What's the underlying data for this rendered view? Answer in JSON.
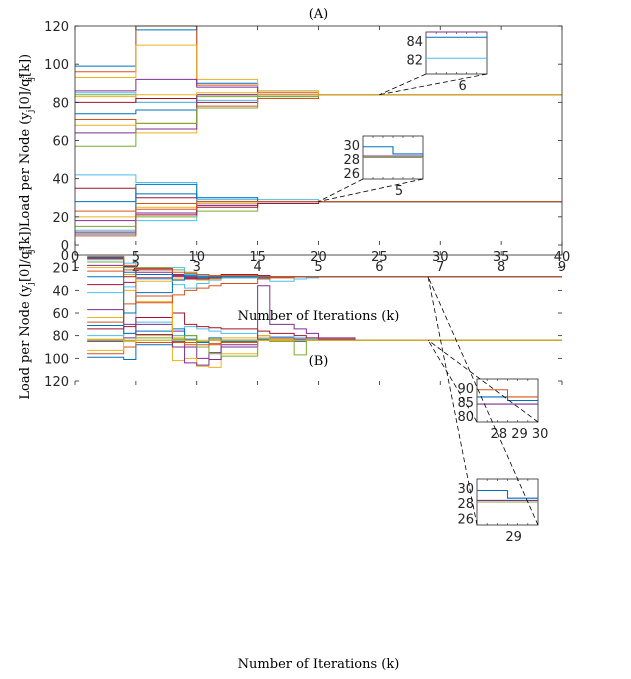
{
  "figure": {
    "colors": [
      "#0072BD",
      "#D95319",
      "#EDB120",
      "#7E2F8E",
      "#77AC30",
      "#4DBEEE",
      "#A2142F"
    ]
  },
  "chart_data": [
    {
      "type": "line",
      "title": "(A)",
      "xlabel": "Number of Iterations (k)",
      "ylabel": "Load per Node (y_j[0]/q_j^s[k])",
      "ylabel_parts": [
        "Load per Node ",
        "(y",
        "j",
        "[0]/q",
        "s",
        "j",
        "[k])"
      ],
      "xlim": [
        1,
        9
      ],
      "ylim": [
        0,
        120
      ],
      "xticks": [
        1,
        2,
        3,
        4,
        5,
        6,
        7,
        8,
        9
      ],
      "yticks": [
        0,
        20,
        40,
        60,
        80,
        100,
        120
      ],
      "grid": false,
      "step": true,
      "x": [
        1,
        2,
        3,
        4,
        5,
        6,
        7,
        8,
        9
      ],
      "series": [
        {
          "values": [
            99,
            118,
            90,
            86,
            84,
            84,
            84,
            84,
            84
          ]
        },
        {
          "values": [
            96,
            120,
            89,
            85,
            84,
            84,
            84,
            84,
            84
          ]
        },
        {
          "values": [
            93,
            110,
            92,
            86,
            84,
            84,
            84,
            84,
            84
          ]
        },
        {
          "values": [
            86,
            92,
            88,
            84,
            84,
            84,
            84,
            84,
            84
          ]
        },
        {
          "values": [
            84,
            80,
            83,
            84,
            84,
            84,
            84,
            84,
            84
          ]
        },
        {
          "values": [
            85,
            80,
            81,
            83,
            84,
            84,
            84,
            84,
            84
          ]
        },
        {
          "values": [
            80,
            82,
            80,
            82,
            84,
            84,
            84,
            84,
            84
          ]
        },
        {
          "values": [
            74,
            76,
            84,
            84,
            84,
            84,
            84,
            84,
            84
          ]
        },
        {
          "values": [
            71,
            69,
            78,
            82,
            84,
            84,
            84,
            84,
            84
          ]
        },
        {
          "values": [
            68,
            64,
            84,
            84,
            84,
            84,
            84,
            84,
            84
          ]
        },
        {
          "values": [
            64,
            66,
            84,
            84,
            84,
            84,
            84,
            84,
            84
          ]
        },
        {
          "values": [
            57,
            69,
            77,
            83,
            84,
            84,
            84,
            84,
            84
          ]
        },
        {
          "values": [
            42,
            38,
            30,
            29,
            28,
            28,
            28,
            28,
            28
          ]
        },
        {
          "values": [
            35,
            30,
            28,
            28,
            28,
            28,
            28,
            28,
            28
          ]
        },
        {
          "values": [
            28,
            32,
            28,
            28,
            28,
            28,
            28,
            28,
            28
          ]
        },
        {
          "values": [
            23,
            27,
            26,
            27,
            28,
            28,
            28,
            28,
            28
          ]
        },
        {
          "values": [
            20,
            25,
            27,
            28,
            28,
            28,
            28,
            28,
            28
          ]
        },
        {
          "values": [
            18,
            22,
            26,
            27,
            28,
            28,
            28,
            28,
            28
          ]
        },
        {
          "values": [
            15,
            20,
            23,
            27,
            28,
            28,
            28,
            28,
            28
          ]
        },
        {
          "values": [
            13,
            18,
            29,
            28,
            28,
            28,
            28,
            28,
            28
          ]
        },
        {
          "values": [
            12,
            21,
            25,
            27,
            28,
            28,
            28,
            28,
            28
          ]
        },
        {
          "values": [
            11,
            37,
            30,
            28,
            28,
            28,
            28,
            28,
            28
          ]
        },
        {
          "values": [
            10,
            24,
            28,
            28,
            28,
            28,
            28,
            28,
            28
          ]
        },
        {
          "values": [
            83,
            84,
            85,
            84,
            84,
            84,
            84,
            84,
            84
          ]
        }
      ],
      "insets": [
        {
          "target_x": 6,
          "target_y": 84,
          "label": "6",
          "yticks": [
            84,
            82
          ],
          "lines": [
            {
              "values": [
                85,
                85
              ],
              "color": 3
            },
            {
              "values": [
                84.5,
                84.5
              ],
              "color": 0
            },
            {
              "values": [
                82.5,
                82.5
              ],
              "color": 5
            }
          ]
        },
        {
          "target_x": 5,
          "target_y": 28,
          "label": "5",
          "yticks": [
            30,
            28,
            26
          ],
          "lines": [
            {
              "values": [
                29.5,
                28.5
              ],
              "color": 0
            },
            {
              "values": [
                28.2,
                28.2
              ],
              "color": 3
            },
            {
              "values": [
                28,
                28
              ],
              "color": 4
            }
          ]
        }
      ]
    },
    {
      "type": "line",
      "title": "(B)",
      "xlabel": "Number of Iterations (k)",
      "ylabel": "Load per Node (y_j[0]/q_j^s[k])",
      "ylabel_parts": [
        "Load per Node ",
        "(y",
        "j",
        "[0]/q",
        "s",
        "j",
        "[k])"
      ],
      "xlim": [
        0,
        40
      ],
      "ylim": [
        0,
        120
      ],
      "xticks": [
        0,
        5,
        10,
        15,
        20,
        25,
        30,
        35,
        40
      ],
      "yticks": [
        0,
        20,
        40,
        60,
        80,
        100,
        120
      ],
      "grid": false,
      "step": true,
      "x": [
        1,
        4,
        5,
        8,
        9,
        10,
        11,
        12,
        15,
        16,
        18,
        19,
        20,
        23,
        29,
        40
      ],
      "series": [
        {
          "values": [
            99,
            101,
            88,
            85,
            83,
            86,
            84,
            85,
            84,
            84,
            85,
            84,
            84,
            84,
            84,
            84
          ]
        },
        {
          "values": [
            96,
            90,
            86,
            84,
            86,
            88,
            87,
            84,
            84,
            85,
            84,
            84,
            84,
            84,
            84,
            84
          ]
        },
        {
          "values": [
            93,
            85,
            80,
            82,
            84,
            86,
            83,
            82,
            82,
            83,
            84,
            84,
            84,
            84,
            84,
            84
          ]
        },
        {
          "values": [
            85,
            82,
            70,
            76,
            90,
            100,
            95,
            88,
            80,
            82,
            83,
            84,
            84,
            84,
            84,
            84
          ]
        },
        {
          "values": [
            84,
            78,
            82,
            80,
            84,
            85,
            84,
            84,
            84,
            84,
            84,
            84,
            84,
            84,
            84,
            84
          ]
        },
        {
          "values": [
            80,
            60,
            68,
            80,
            72,
            74,
            76,
            78,
            80,
            81,
            82,
            83,
            84,
            84,
            84,
            84
          ]
        },
        {
          "values": [
            74,
            72,
            64,
            60,
            70,
            72,
            73,
            74,
            76,
            78,
            80,
            82,
            83,
            84,
            84,
            84
          ]
        },
        {
          "values": [
            71,
            78,
            76,
            74,
            80,
            86,
            82,
            84,
            83,
            84,
            84,
            84,
            84,
            84,
            84,
            84
          ]
        },
        {
          "values": [
            68,
            52,
            45,
            86,
            88,
            90,
            88,
            86,
            84,
            84,
            84,
            84,
            84,
            84,
            84,
            84
          ]
        },
        {
          "values": [
            64,
            40,
            50,
            102,
            100,
            107,
            108,
            96,
            80,
            84,
            84,
            84,
            84,
            84,
            84,
            84
          ]
        },
        {
          "values": [
            57,
            70,
            79,
            90,
            104,
            106,
            101,
            90,
            36,
            70,
            74,
            78,
            82,
            84,
            84,
            84
          ]
        },
        {
          "values": [
            84,
            84,
            84,
            83,
            80,
            90,
            96,
            98,
            84,
            85,
            97,
            84,
            84,
            84,
            84,
            84
          ]
        },
        {
          "values": [
            42,
            37,
            30,
            35,
            38,
            34,
            31,
            28,
            30,
            32,
            30,
            29,
            28,
            28,
            28,
            28
          ]
        },
        {
          "values": [
            35,
            33,
            29,
            27,
            30,
            28,
            30,
            29,
            30,
            28,
            28,
            28,
            28,
            28,
            28,
            28
          ]
        },
        {
          "values": [
            28,
            60,
            42,
            30,
            28,
            29,
            28,
            28,
            29,
            28,
            28,
            28,
            28,
            28,
            28,
            28
          ]
        },
        {
          "values": [
            23,
            22,
            51,
            44,
            40,
            38,
            36,
            34,
            30,
            29,
            28,
            28,
            28,
            28,
            28,
            28
          ]
        },
        {
          "values": [
            20,
            26,
            32,
            30,
            29,
            31,
            30,
            29,
            28,
            28,
            28,
            28,
            28,
            28,
            28,
            28
          ]
        },
        {
          "values": [
            18,
            19,
            24,
            26,
            28,
            30,
            29,
            28,
            27,
            28,
            28,
            28,
            28,
            28,
            28,
            28
          ]
        },
        {
          "values": [
            15,
            20,
            20,
            22,
            24,
            26,
            27,
            28,
            28,
            28,
            28,
            28,
            28,
            28,
            28,
            28
          ]
        },
        {
          "values": [
            13,
            16,
            22,
            20,
            26,
            27,
            28,
            29,
            28,
            28,
            28,
            28,
            28,
            28,
            28,
            28
          ]
        },
        {
          "values": [
            12,
            28,
            21,
            28,
            29,
            30,
            29,
            26,
            27,
            28,
            28,
            28,
            28,
            28,
            28,
            28
          ]
        },
        {
          "values": [
            11,
            24,
            26,
            31,
            27,
            28,
            28,
            28,
            28,
            28,
            28,
            28,
            28,
            28,
            28,
            28
          ]
        },
        {
          "values": [
            10,
            18,
            22,
            24,
            25,
            26,
            27,
            27,
            28,
            28,
            28,
            28,
            28,
            28,
            28,
            28
          ]
        },
        {
          "values": [
            83,
            85,
            84,
            84,
            84,
            84,
            84,
            84,
            84,
            84,
            84,
            84,
            84,
            84,
            84,
            84
          ]
        }
      ],
      "insets": [
        {
          "target_x": 29,
          "target_y": 84,
          "label": "28 29 30",
          "yticks": [
            90,
            85,
            80
          ],
          "lines": [
            {
              "values": [
                88,
                86
              ],
              "color": 1
            },
            {
              "values": [
                86,
                85
              ],
              "color": 0
            },
            {
              "values": [
                84,
                84
              ],
              "color": 3
            }
          ]
        },
        {
          "target_x": 29,
          "target_y": 28,
          "label": "29",
          "yticks": [
            30,
            28,
            26
          ],
          "lines": [
            {
              "values": [
                29.5,
                28.5
              ],
              "color": 0
            },
            {
              "values": [
                28.2,
                28.2
              ],
              "color": 3
            },
            {
              "values": [
                28,
                28
              ],
              "color": 4
            }
          ]
        }
      ]
    }
  ]
}
